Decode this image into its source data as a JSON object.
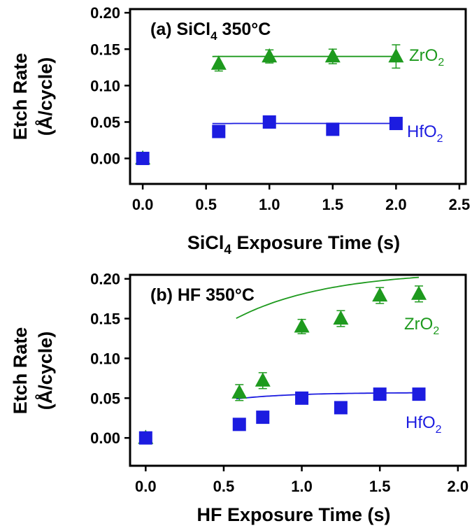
{
  "chart_data": [
    {
      "type": "scatter",
      "title": "(a) SiCl",
      "title_sub": "4",
      "title_rest": " 350°C",
      "xlabel": "SiCl",
      "xlabel_sub": "4",
      "xlabel_rest": " Exposure Time (s)",
      "ylabel_line1": "Etch Rate",
      "ylabel_line2": "(Å/cycle)",
      "xlim": [
        -0.1,
        2.55
      ],
      "ylim": [
        -0.035,
        0.205
      ],
      "xticks": [
        0.0,
        0.5,
        1.0,
        1.5,
        2.0,
        2.5
      ],
      "xtick_labels": [
        "0.0",
        "0.5",
        "1.0",
        "1.5",
        "2.0",
        "2.5"
      ],
      "yticks": [
        0.0,
        0.05,
        0.1,
        0.15,
        0.2
      ],
      "ytick_labels": [
        "0.00",
        "0.05",
        "0.10",
        "0.15",
        "0.20"
      ],
      "series": [
        {
          "label": "ZrO",
          "label_sub": "2",
          "marker": "triangle",
          "color": "#1e9a1e",
          "x": [
            0.0,
            0.6,
            1.0,
            1.5,
            2.0
          ],
          "y": [
            0.0,
            0.13,
            0.14,
            0.14,
            0.14
          ],
          "err": [
            0.004,
            0.01,
            0.009,
            0.01,
            0.016
          ],
          "fit": {
            "x0": 0.55,
            "x1": 2.0,
            "a": 0.14,
            "b": -0.17,
            "k": 15.0
          }
        },
        {
          "label": "HfO",
          "label_sub": "2",
          "marker": "square",
          "color": "#1c1ce0",
          "x": [
            0.0,
            0.6,
            1.0,
            1.5,
            2.0
          ],
          "y": [
            0.0,
            0.037,
            0.05,
            0.04,
            0.048
          ],
          "err": [
            0.0,
            0.0,
            0.0,
            0.0,
            0.0
          ],
          "fit": {
            "x0": 0.55,
            "x1": 2.0,
            "a": 0.048,
            "b": -0.04,
            "k": 12.0
          }
        }
      ]
    },
    {
      "type": "scatter",
      "title": "(b) HF 350°C",
      "title_sub": "",
      "title_rest": "",
      "xlabel": "HF Exposure Time (s)",
      "xlabel_sub": "",
      "xlabel_rest": "",
      "ylabel_line1": "Etch Rate",
      "ylabel_line2": "(Å/cycle)",
      "xlim": [
        -0.1,
        2.05
      ],
      "ylim": [
        -0.035,
        0.205
      ],
      "xticks": [
        0.0,
        0.5,
        1.0,
        1.5,
        2.0
      ],
      "xtick_labels": [
        "0.0",
        "0.5",
        "1.0",
        "1.5",
        "2.0"
      ],
      "yticks": [
        0.0,
        0.05,
        0.1,
        0.15,
        0.2
      ],
      "ytick_labels": [
        "0.00",
        "0.05",
        "0.10",
        "0.15",
        "0.20"
      ],
      "series": [
        {
          "label": "ZrO",
          "label_sub": "2",
          "marker": "triangle",
          "color": "#1e9a1e",
          "x": [
            0.0,
            0.6,
            0.75,
            1.0,
            1.25,
            1.5,
            1.75
          ],
          "y": [
            0.0,
            0.057,
            0.072,
            0.14,
            0.15,
            0.179,
            0.181
          ],
          "err": [
            0.004,
            0.01,
            0.01,
            0.009,
            0.01,
            0.01,
            0.01
          ],
          "fit": {
            "x0": 0.58,
            "x1": 1.75,
            "a": 0.21,
            "b": -0.16,
            "k": 1.7
          }
        },
        {
          "label": "HfO",
          "label_sub": "2",
          "marker": "square",
          "color": "#1c1ce0",
          "x": [
            0.0,
            0.6,
            0.75,
            1.0,
            1.25,
            1.5,
            1.75
          ],
          "y": [
            0.0,
            0.017,
            0.026,
            0.05,
            0.038,
            0.055,
            0.055
          ],
          "err": [
            0.0,
            0.0,
            0.0,
            0.0,
            0.0,
            0.0,
            0.0
          ],
          "fit": {
            "x0": 0.58,
            "x1": 1.75,
            "a": 0.057,
            "b": -0.04,
            "k": 2.8
          }
        }
      ]
    }
  ]
}
